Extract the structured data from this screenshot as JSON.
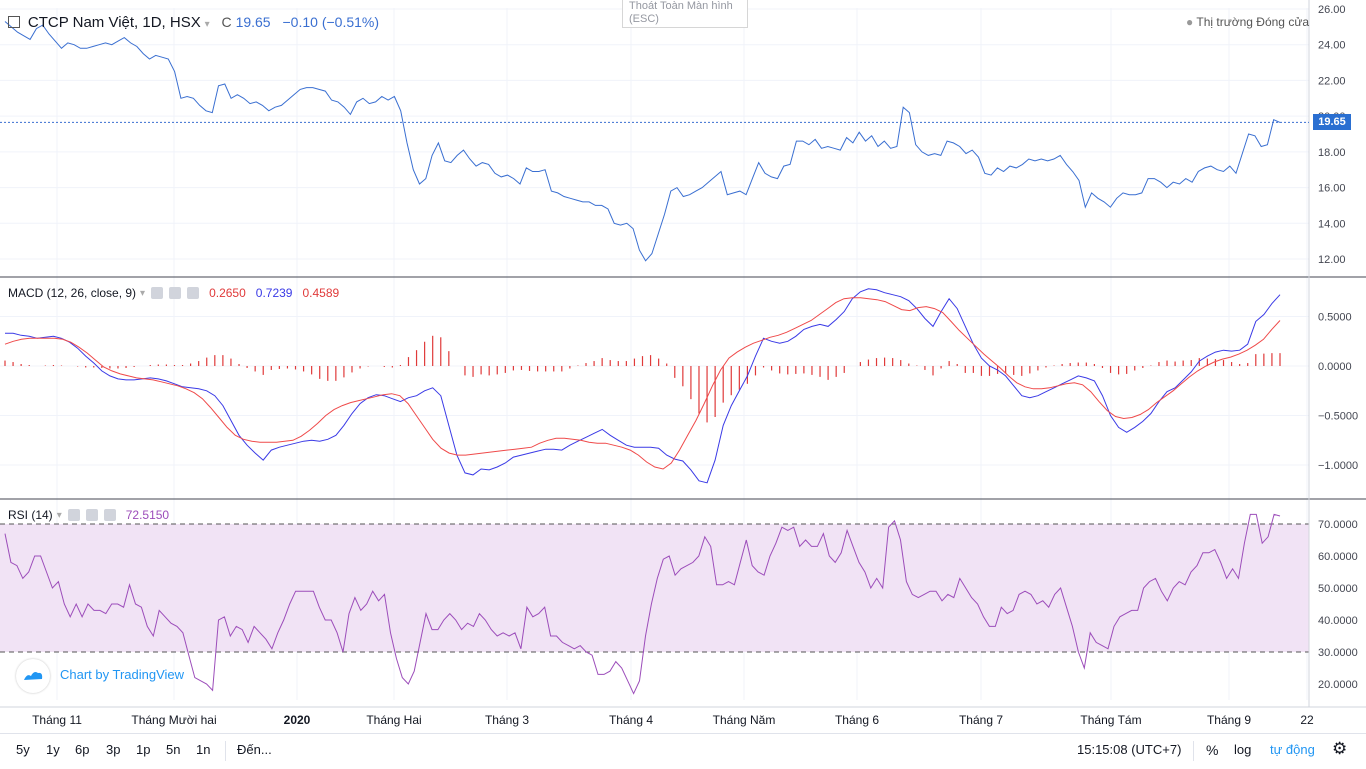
{
  "header": {
    "symbol": "CTCP Nam Việt, 1D, HSX",
    "close_label": "C",
    "close_value": "19.65",
    "change": "−0.10 (−0.51%)",
    "market_status": "Thị trường Đóng cửa"
  },
  "fullscreen_exit": {
    "line1": "Thoát Toàn Màn hình",
    "line2": "(ESC)"
  },
  "last_price_tag": "19.65",
  "macd_legend": {
    "title": "MACD (12, 26, close, 9)",
    "hist": "0.2650",
    "macd": "0.7239",
    "signal": "0.4589"
  },
  "rsi_legend": {
    "title": "RSI (14)",
    "value": "72.5150"
  },
  "tradingview_label": "Chart by TradingView",
  "bottom": {
    "ranges": [
      "5y",
      "1y",
      "6p",
      "3p",
      "1p",
      "5n",
      "1n"
    ],
    "goto": "Đến...",
    "time": "15:15:08 (UTC+7)",
    "percent": "%",
    "log": "log",
    "auto": "tự động"
  },
  "colors": {
    "price": "#3a6fd1",
    "macd": "#3a3ae6",
    "signal": "#ef4a4a",
    "hist": "#e03a3a",
    "rsi": "#9c4dba",
    "rsi_band": "#f1e3f5"
  },
  "chart_data": [
    {
      "type": "line",
      "title": "CTCP Nam Việt, 1D, HSX",
      "yticks": [
        12.0,
        14.0,
        16.0,
        18.0,
        20.0,
        22.0,
        24.0,
        26.0
      ],
      "ylim": [
        11.0,
        26.0
      ],
      "x_ticks": [
        "Tháng 11",
        "Tháng Mười hai",
        "2020",
        "Tháng Hai",
        "Tháng 3",
        "Tháng 4",
        "Tháng Năm",
        "Tháng 6",
        "Tháng 7",
        "Tháng Tám",
        "Tháng 9",
        "22"
      ],
      "series": [
        {
          "values": [
            25.3,
            25.0,
            24.7,
            24.5,
            24.3,
            24.9,
            25.1,
            24.6,
            24.2,
            23.8,
            24.1,
            24.0,
            23.8,
            23.8,
            23.9,
            24.0,
            24.1,
            24.0,
            24.2,
            24.4,
            24.1,
            23.9,
            23.5,
            23.2,
            23.4,
            23.3,
            23.2,
            22.5,
            21.0,
            21.1,
            21.0,
            20.6,
            20.3,
            20.2,
            21.7,
            21.8,
            21.0,
            21.2,
            21.0,
            20.7,
            20.8,
            20.6,
            20.3,
            20.5,
            20.6,
            20.9,
            21.2,
            21.5,
            21.6,
            21.6,
            21.5,
            21.4,
            20.9,
            20.8,
            20.5,
            20.1,
            20.8,
            21.0,
            20.7,
            20.8,
            21.1,
            20.9,
            21.1,
            20.3,
            18.5,
            17.0,
            16.2,
            16.5,
            17.8,
            18.5,
            17.5,
            17.4,
            17.8,
            18.1,
            17.6,
            17.2,
            17.4,
            17.3,
            16.8,
            16.6,
            16.7,
            16.5,
            16.2,
            17.1,
            16.9,
            16.9,
            17.0,
            15.8,
            15.7,
            15.5,
            15.4,
            15.3,
            15.2,
            15.2,
            15.0,
            15.0,
            14.8,
            14.0,
            13.9,
            14.0,
            13.7,
            12.5,
            11.9,
            12.3,
            13.4,
            14.5,
            15.8,
            16.0,
            15.5,
            15.6,
            15.8,
            16.0,
            16.3,
            16.6,
            16.9,
            15.6,
            15.7,
            15.8,
            15.6,
            16.5,
            17.4,
            16.8,
            16.6,
            16.5,
            17.2,
            17.3,
            18.6,
            18.6,
            18.4,
            18.7,
            18.2,
            18.3,
            18.2,
            18.1,
            18.8,
            18.5,
            19.1,
            18.6,
            18.9,
            18.3,
            18.6,
            18.2,
            18.3,
            20.5,
            20.2,
            18.4,
            18.0,
            17.8,
            17.9,
            17.8,
            18.6,
            18.5,
            18.3,
            17.9,
            18.1,
            17.7,
            16.8,
            16.7,
            17.1,
            16.9,
            17.2,
            17.1,
            17.3,
            17.6,
            17.5,
            17.6,
            17.5,
            17.6,
            17.8,
            17.3,
            16.9,
            16.4,
            14.9,
            15.7,
            15.4,
            15.2,
            14.9,
            15.4,
            15.7,
            15.6,
            15.6,
            15.7,
            16.5,
            16.5,
            16.3,
            16.0,
            16.3,
            16.2,
            16.5,
            16.3,
            16.9,
            17.1,
            17.2,
            17.0,
            16.9,
            17.2,
            16.8,
            17.9,
            19.0,
            18.9,
            18.3,
            18.4,
            19.8,
            19.65
          ]
        }
      ]
    },
    {
      "type": "line",
      "title": "MACD (12, 26, close, 9)",
      "yticks": [
        -1.0,
        -0.5,
        0.0,
        0.5
      ],
      "ylim": [
        -1.35,
        0.9
      ],
      "series": [
        {
          "name": "MACD",
          "values": [
            0.33,
            0.33,
            0.31,
            0.3,
            0.28,
            0.29,
            0.3,
            0.28,
            0.24,
            0.18,
            0.1,
            0.03,
            -0.05,
            -0.1,
            -0.13,
            -0.14,
            -0.14,
            -0.13,
            -0.12,
            -0.13,
            -0.15,
            -0.18,
            -0.21,
            -0.22,
            -0.23,
            -0.25,
            -0.3,
            -0.4,
            -0.55,
            -0.7,
            -0.8,
            -0.88,
            -0.95,
            -0.85,
            -0.82,
            -0.8,
            -0.78,
            -0.76,
            -0.75,
            -0.76,
            -0.74,
            -0.7,
            -0.6,
            -0.48,
            -0.38,
            -0.32,
            -0.29,
            -0.3,
            -0.33,
            -0.36,
            -0.32,
            -0.3,
            -0.25,
            -0.22,
            -0.3,
            -0.6,
            -0.9,
            -1.08,
            -1.1,
            -1.04,
            -1.05,
            -1.02,
            -0.98,
            -0.92,
            -0.9,
            -0.88,
            -0.86,
            -0.84,
            -0.84,
            -0.85,
            -0.8,
            -0.76,
            -0.72,
            -0.68,
            -0.64,
            -0.7,
            -0.75,
            -0.8,
            -0.82,
            -0.82,
            -0.82,
            -0.83,
            -0.9,
            -0.94,
            -0.96,
            -1.05,
            -1.16,
            -1.18,
            -0.95,
            -0.6,
            -0.4,
            -0.25,
            -0.1,
            0.1,
            0.28,
            0.25,
            0.23,
            0.25,
            0.3,
            0.37,
            0.4,
            0.42,
            0.4,
            0.47,
            0.55,
            0.68,
            0.75,
            0.78,
            0.77,
            0.74,
            0.72,
            0.7,
            0.66,
            0.58,
            0.48,
            0.4,
            0.55,
            0.68,
            0.58,
            0.4,
            0.22,
            0.08,
            0.0,
            -0.04,
            -0.1,
            -0.2,
            -0.3,
            -0.32,
            -0.3,
            -0.26,
            -0.22,
            -0.18,
            -0.14,
            -0.1,
            -0.12,
            -0.15,
            -0.3,
            -0.5,
            -0.62,
            -0.67,
            -0.62,
            -0.56,
            -0.48,
            -0.36,
            -0.26,
            -0.22,
            -0.14,
            -0.06,
            0.05,
            0.1,
            0.14,
            0.16,
            0.15,
            0.16,
            0.22,
            0.45,
            0.52,
            0.63,
            0.72
          ]
        },
        {
          "name": "Signal",
          "values": [
            0.22,
            0.25,
            0.27,
            0.28,
            0.28,
            0.28,
            0.28,
            0.27,
            0.24,
            0.19,
            0.13,
            0.06,
            -0.01,
            -0.05,
            -0.08,
            -0.1,
            -0.12,
            -0.13,
            -0.14,
            -0.16,
            -0.18,
            -0.2,
            -0.23,
            -0.27,
            -0.33,
            -0.42,
            -0.52,
            -0.62,
            -0.7,
            -0.74,
            -0.76,
            -0.77,
            -0.77,
            -0.77,
            -0.76,
            -0.75,
            -0.71,
            -0.65,
            -0.58,
            -0.5,
            -0.44,
            -0.4,
            -0.37,
            -0.35,
            -0.33,
            -0.31,
            -0.29,
            -0.28,
            -0.3,
            -0.38,
            -0.5,
            -0.62,
            -0.74,
            -0.83,
            -0.88,
            -0.9,
            -0.9,
            -0.89,
            -0.88,
            -0.87,
            -0.86,
            -0.85,
            -0.84,
            -0.83,
            -0.82,
            -0.78,
            -0.75,
            -0.73,
            -0.73,
            -0.74,
            -0.75,
            -0.77,
            -0.78,
            -0.78,
            -0.8,
            -0.82,
            -0.85,
            -0.9,
            -0.97,
            -1.02,
            -1.04,
            -0.98,
            -0.85,
            -0.7,
            -0.55,
            -0.38,
            -0.2,
            -0.04,
            0.08,
            0.14,
            0.19,
            0.23,
            0.26,
            0.29,
            0.31,
            0.34,
            0.38,
            0.42,
            0.46,
            0.52,
            0.58,
            0.64,
            0.68,
            0.69,
            0.69,
            0.68,
            0.67,
            0.65,
            0.61,
            0.57,
            0.56,
            0.59,
            0.6,
            0.58,
            0.54,
            0.45,
            0.36,
            0.28,
            0.2,
            0.12,
            0.05,
            -0.02,
            -0.1,
            -0.17,
            -0.21,
            -0.23,
            -0.23,
            -0.22,
            -0.2,
            -0.18,
            -0.17,
            -0.19,
            -0.26,
            -0.36,
            -0.45,
            -0.51,
            -0.53,
            -0.52,
            -0.49,
            -0.44,
            -0.37,
            -0.31,
            -0.25,
            -0.18,
            -0.11,
            -0.05,
            0.0,
            0.04,
            0.07,
            0.09,
            0.12,
            0.16,
            0.21,
            0.27,
            0.37,
            0.46
          ]
        },
        {
          "name": "Histogram",
          "values": [
            0.11,
            0.08,
            0.04,
            0.02,
            0.0,
            0.01,
            0.02,
            0.01,
            0.0,
            -0.01,
            -0.03,
            -0.03,
            -0.04,
            -0.05,
            -0.05,
            -0.04,
            -0.02,
            0.0,
            0.02,
            0.03,
            0.03,
            0.02,
            0.02,
            0.05,
            0.1,
            0.17,
            0.22,
            0.22,
            0.15,
            0.04,
            -0.04,
            -0.11,
            -0.18,
            -0.08,
            -0.06,
            -0.05,
            -0.07,
            -0.11,
            -0.17,
            -0.26,
            -0.3,
            -0.3,
            -0.23,
            -0.13,
            -0.05,
            -0.01,
            0.0,
            -0.02,
            -0.03,
            0.02,
            0.18,
            0.32,
            0.49,
            0.61,
            0.58,
            0.3,
            0.0,
            -0.19,
            -0.22,
            -0.17,
            -0.19,
            -0.17,
            -0.14,
            -0.09,
            -0.08,
            -0.1,
            -0.11,
            -0.11,
            -0.11,
            -0.11,
            -0.05,
            0.01,
            0.06,
            0.1,
            0.16,
            0.12,
            0.1,
            0.1,
            0.15,
            0.2,
            0.22,
            0.15,
            0.05,
            -0.24,
            -0.41,
            -0.67,
            -0.96,
            -1.14,
            -1.03,
            -0.74,
            -0.59,
            -0.48,
            -0.36,
            -0.19,
            -0.03,
            -0.09,
            -0.15,
            -0.17,
            -0.16,
            -0.15,
            -0.18,
            -0.22,
            -0.28,
            -0.22,
            -0.14,
            0.0,
            0.08,
            0.13,
            0.16,
            0.17,
            0.16,
            0.12,
            0.05,
            0.01,
            -0.08,
            -0.19,
            -0.05,
            0.1,
            0.04,
            -0.14,
            -0.14,
            -0.2,
            -0.2,
            -0.16,
            -0.15,
            -0.18,
            -0.2,
            -0.15,
            -0.09,
            -0.03,
            0.01,
            0.04,
            0.06,
            0.07,
            0.07,
            0.04,
            -0.04,
            -0.14,
            -0.17,
            -0.16,
            -0.09,
            -0.04,
            0.01,
            0.08,
            0.11,
            0.09,
            0.11,
            0.12,
            0.16,
            0.15,
            0.14,
            0.12,
            0.08,
            0.04,
            0.06,
            0.24,
            0.25,
            0.26,
            0.26
          ]
        }
      ]
    },
    {
      "type": "line",
      "title": "RSI (14)",
      "yticks": [
        20.0,
        30.0,
        40.0,
        50.0,
        60.0,
        70.0
      ],
      "ylim": [
        14.0,
        77.0
      ],
      "bands": [
        30.0,
        70.0
      ],
      "series": [
        {
          "values": [
            67,
            58,
            57,
            53,
            55,
            60,
            60,
            55,
            50,
            52,
            45,
            41,
            45,
            41,
            45,
            43,
            43,
            42,
            45,
            45,
            44,
            51,
            45,
            44,
            38,
            35,
            43,
            41,
            39,
            38,
            36,
            29,
            22,
            21,
            20,
            18,
            40,
            41,
            35,
            38,
            37,
            33,
            38,
            36,
            34,
            31,
            36,
            40,
            45,
            49,
            49,
            49,
            49,
            44,
            40,
            40,
            36,
            30,
            42,
            47,
            43,
            45,
            49,
            46,
            48,
            36,
            28,
            22,
            20,
            24,
            33,
            42,
            37,
            37,
            40,
            42,
            40,
            37,
            39,
            38,
            42,
            40,
            37,
            35,
            36,
            35,
            36,
            31,
            44,
            41,
            42,
            44,
            35,
            35,
            33,
            32,
            31,
            32,
            30,
            29,
            23,
            23,
            24,
            27,
            25,
            21,
            17,
            21,
            35,
            45,
            53,
            59,
            60,
            54,
            56,
            57,
            58,
            60,
            66,
            63,
            51,
            51,
            52,
            51,
            58,
            65,
            57,
            55,
            54,
            60,
            64,
            69,
            68,
            69,
            63,
            65,
            63,
            63,
            67,
            60,
            58,
            61,
            68,
            63,
            58,
            55,
            50,
            53,
            50,
            69,
            71,
            65,
            52,
            48,
            47,
            48,
            49,
            49,
            46,
            48,
            47,
            53,
            50,
            47,
            45,
            41,
            38,
            38,
            44,
            42,
            43,
            48,
            49,
            48,
            45,
            46,
            44,
            48,
            50,
            44,
            38,
            30,
            25,
            36,
            33,
            32,
            31,
            38,
            41,
            42,
            43,
            43,
            50,
            52,
            53,
            49,
            46,
            50,
            52,
            51,
            55,
            57,
            61,
            61,
            62,
            58,
            53,
            56,
            53,
            64,
            73,
            73,
            64,
            66,
            73,
            72.5
          ]
        }
      ]
    }
  ]
}
